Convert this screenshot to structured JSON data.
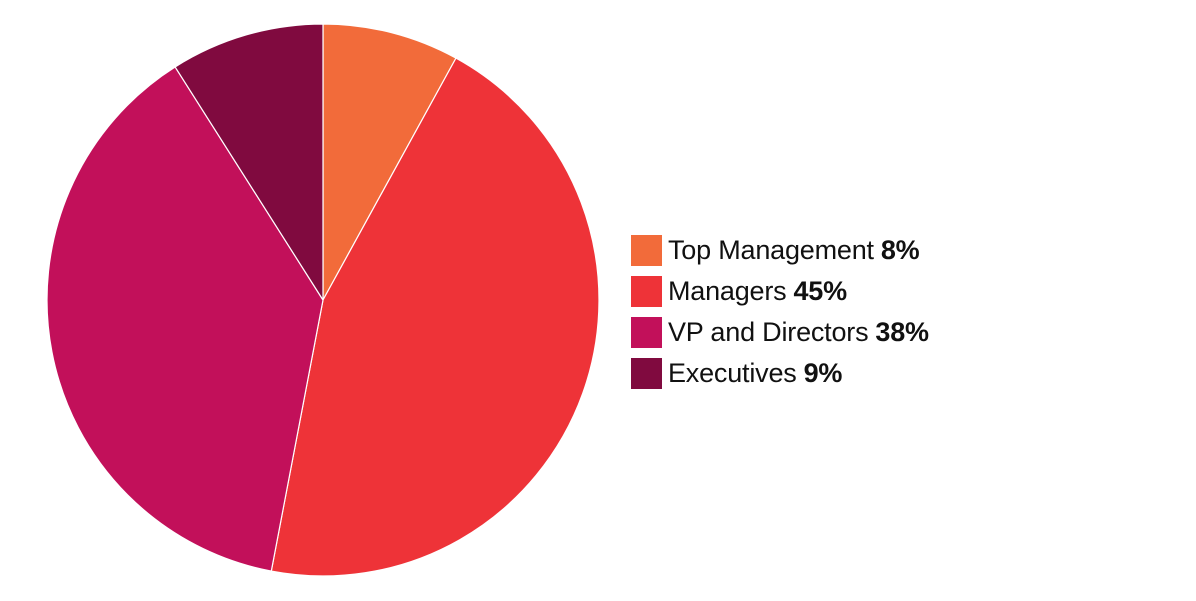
{
  "chart_data": {
    "type": "pie",
    "title": "",
    "start_angle_deg": 0,
    "direction": "clockwise",
    "legend_position": "right",
    "slices": [
      {
        "label": "Top Management",
        "value": 8,
        "display": "8%",
        "color": "#f26b3a"
      },
      {
        "label": "Managers",
        "value": 45,
        "display": "45%",
        "color": "#ee3338"
      },
      {
        "label": "VP and Directors",
        "value": 38,
        "display": "38%",
        "color": "#c2105a"
      },
      {
        "label": "Executives",
        "value": 9,
        "display": "9%",
        "color": "#800a3f"
      }
    ]
  },
  "legend": {
    "items": [
      {
        "name": "Top Management",
        "value": "8%",
        "color": "#f26b3a"
      },
      {
        "name": "Managers",
        "value": "45%",
        "color": "#ee3338"
      },
      {
        "name": "VP and Directors",
        "value": "38%",
        "color": "#c2105a"
      },
      {
        "name": "Executives",
        "value": "9%",
        "color": "#800a3f"
      }
    ]
  }
}
